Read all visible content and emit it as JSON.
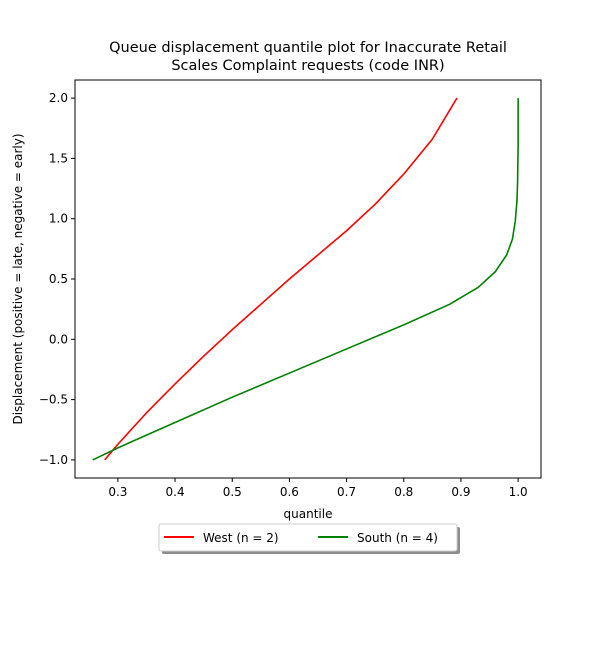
{
  "chart_data": {
    "type": "line",
    "title_lines": [
      "Queue displacement quantile plot for Inaccurate Retail",
      "Scales Complaint  requests (code INR)"
    ],
    "xlabel": "quantile",
    "ylabel": "Displacement (positive = late, negative = early)",
    "xlim": [
      0.225,
      1.04
    ],
    "ylim": [
      -1.15,
      2.15
    ],
    "xticks": [
      0.3,
      0.4,
      0.5,
      0.6,
      0.7,
      0.8,
      0.9,
      1.0
    ],
    "xtick_labels": [
      "0.3",
      "0.4",
      "0.5",
      "0.6",
      "0.7",
      "0.8",
      "0.9",
      "1.0"
    ],
    "yticks": [
      -1.0,
      -0.5,
      0.0,
      0.5,
      1.0,
      1.5,
      2.0
    ],
    "ytick_labels": [
      "−1.0",
      "−0.5",
      "0.0",
      "0.5",
      "1.0",
      "1.5",
      "2.0"
    ],
    "grid": false,
    "legend_placement": "below plot, centered",
    "series": [
      {
        "name": "West (n = 2)",
        "color": "#ff0000",
        "x": [
          0.277,
          0.3,
          0.35,
          0.4,
          0.45,
          0.5,
          0.55,
          0.6,
          0.65,
          0.7,
          0.75,
          0.8,
          0.85,
          0.893
        ],
        "y": [
          -1.0,
          -0.87,
          -0.61,
          -0.37,
          -0.14,
          0.08,
          0.29,
          0.5,
          0.7,
          0.9,
          1.12,
          1.37,
          1.66,
          2.0
        ]
      },
      {
        "name": "South (n = 4)",
        "color": "#008000",
        "x": [
          0.256,
          0.3,
          0.4,
          0.5,
          0.6,
          0.7,
          0.8,
          0.88,
          0.93,
          0.96,
          0.98,
          0.99,
          0.995,
          0.998,
          0.999,
          1.0,
          1.0
        ],
        "y": [
          -1.0,
          -0.9,
          -0.69,
          -0.48,
          -0.28,
          -0.08,
          0.12,
          0.29,
          0.43,
          0.56,
          0.7,
          0.83,
          0.98,
          1.15,
          1.3,
          1.6,
          2.0
        ]
      }
    ]
  }
}
